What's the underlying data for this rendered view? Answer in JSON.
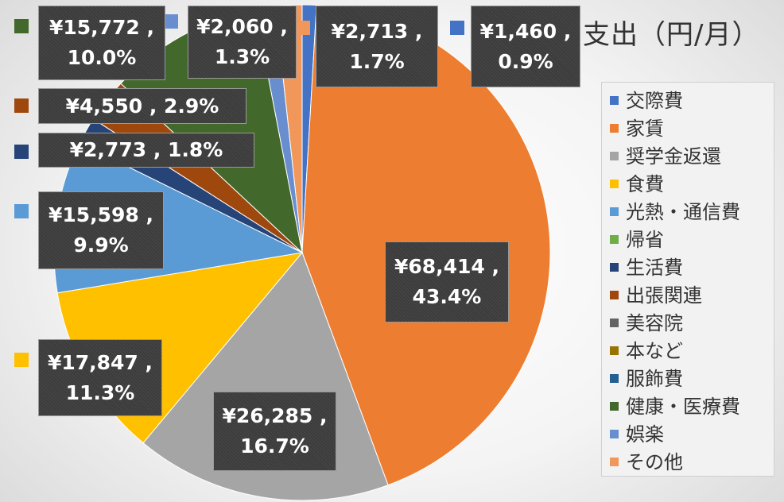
{
  "chart_data": {
    "type": "pie",
    "title": "支出（円/月）",
    "legend_position": "right",
    "slices": [
      {
        "name": "交際費",
        "value": 1460,
        "percent": "0.9%",
        "color": "#4472c4"
      },
      {
        "name": "家賃",
        "value": 68414,
        "percent": "43.4%",
        "color": "#ed7d31"
      },
      {
        "name": "奨学金返還",
        "value": 26285,
        "percent": "16.7%",
        "color": "#a5a5a5"
      },
      {
        "name": "食費",
        "value": 17847,
        "percent": "11.3%",
        "color": "#ffc000"
      },
      {
        "name": "光熱・通信費",
        "value": 15598,
        "percent": "9.9%",
        "color": "#5b9bd5"
      },
      {
        "name": "帰省",
        "value": 0,
        "percent": "",
        "color": "#70ad47"
      },
      {
        "name": "生活費",
        "value": 2773,
        "percent": "1.8%",
        "color": "#264478"
      },
      {
        "name": "出張関連",
        "value": 4550,
        "percent": "2.9%",
        "color": "#9e480e"
      },
      {
        "name": "美容院",
        "value": 0,
        "percent": "",
        "color": "#636363"
      },
      {
        "name": "本など",
        "value": 0,
        "percent": "",
        "color": "#997300"
      },
      {
        "name": "服飾費",
        "value": 0,
        "percent": "",
        "color": "#255e91"
      },
      {
        "name": "健康・医療費",
        "value": 15772,
        "percent": "10.0%",
        "color": "#43682b"
      },
      {
        "name": "娯楽",
        "value": 2060,
        "percent": "1.3%",
        "color": "#698ed0"
      },
      {
        "name": "その他",
        "value": 2713,
        "percent": "1.7%",
        "color": "#f1975a"
      }
    ],
    "data_labels": {
      "s0": {
        "line1": "¥1,460 ,",
        "line2": "0.9%"
      },
      "s1": {
        "line1": "¥68,414 ,",
        "line2": "43.4%"
      },
      "s2": {
        "line1": "¥26,285 ,",
        "line2": "16.7%"
      },
      "s3": {
        "line1": "¥17,847 ,",
        "line2": "11.3%"
      },
      "s4": {
        "line1": "¥15,598 ,",
        "line2": "9.9%"
      },
      "s6": {
        "line1": "¥2,773 , 1.8%"
      },
      "s7": {
        "line1": "¥4,550 , 2.9%"
      },
      "s11": {
        "line1": "¥15,772 ,",
        "line2": "10.0%"
      },
      "s12": {
        "line1": "¥2,060 ,",
        "line2": "1.3%"
      },
      "s13": {
        "line1": "¥2,713 ,",
        "line2": "1.7%"
      }
    }
  }
}
